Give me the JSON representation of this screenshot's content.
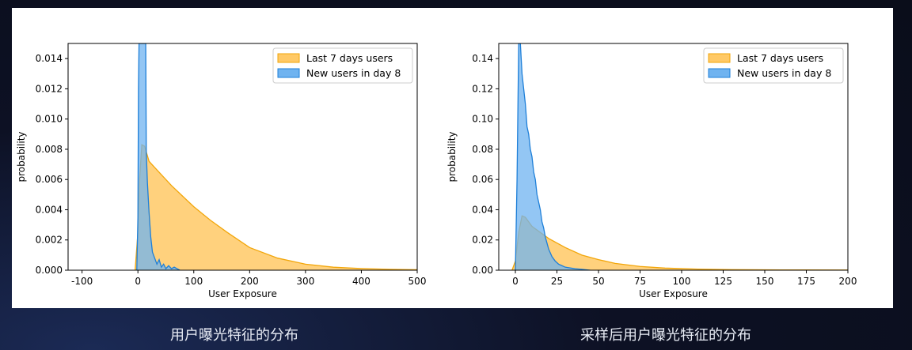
{
  "colors": {
    "last7_fill": "#ffc966",
    "last7_edge": "#f2a60a",
    "new_fill": "#6fb3f0",
    "new_edge": "#1e7fd8",
    "overlap": "#8aa8a8",
    "page_bg": "#0a0d1a"
  },
  "captions": {
    "left": "用户曝光特征的分布",
    "right": "采样后用户曝光特征的分布"
  },
  "chart_data": [
    {
      "type": "area",
      "xlabel": "User Exposure",
      "ylabel": "probability",
      "xlim": [
        -125,
        500
      ],
      "ylim": [
        0,
        0.015
      ],
      "xticks": [
        -100,
        0,
        100,
        200,
        300,
        400,
        500
      ],
      "yticks": [
        0.0,
        0.002,
        0.004,
        0.006,
        0.008,
        0.01,
        0.012,
        0.014
      ],
      "ytick_decimals": 3,
      "legend_position": "top-right",
      "series": [
        {
          "name": "Last 7 days users",
          "x": [
            -5,
            0,
            3,
            7,
            12,
            16,
            20,
            30,
            40,
            60,
            80,
            100,
            130,
            160,
            200,
            250,
            300,
            350,
            400,
            450,
            500
          ],
          "y": [
            0,
            0.0025,
            0.006,
            0.0083,
            0.0082,
            0.0077,
            0.0072,
            0.0068,
            0.0064,
            0.0056,
            0.0049,
            0.0042,
            0.0033,
            0.0025,
            0.0015,
            0.0008,
            0.0004,
            0.0002,
            0.00011,
            6e-05,
            3e-05
          ]
        },
        {
          "name": "New users in day 8",
          "x": [
            -2,
            0,
            1,
            2,
            14,
            15,
            17,
            20,
            23,
            26,
            30,
            34,
            38,
            42,
            46,
            50,
            55,
            60,
            65,
            70,
            75
          ],
          "y": [
            0,
            0.0035,
            0.012,
            0.015,
            0.015,
            0.0078,
            0.0058,
            0.0038,
            0.0022,
            0.0012,
            0.0008,
            0.0004,
            0.0007,
            0.0002,
            0.0004,
            0.0001,
            0.0003,
            0.0001,
            0.0002,
            0.0001,
            0
          ]
        }
      ]
    },
    {
      "type": "area",
      "xlabel": "User Exposure",
      "ylabel": "probability",
      "xlim": [
        -10,
        200
      ],
      "ylim": [
        0,
        0.15
      ],
      "xticks": [
        0,
        25,
        50,
        75,
        100,
        125,
        150,
        175,
        200
      ],
      "yticks": [
        0.0,
        0.02,
        0.04,
        0.06,
        0.08,
        0.1,
        0.12,
        0.14
      ],
      "ytick_decimals": 2,
      "legend_position": "top-right",
      "series": [
        {
          "name": "Last 7 days users",
          "x": [
            -2,
            0,
            2,
            4,
            6,
            8,
            10,
            15,
            20,
            30,
            40,
            50,
            60,
            75,
            90,
            110,
            130,
            160,
            200
          ],
          "y": [
            0,
            0.006,
            0.025,
            0.036,
            0.035,
            0.032,
            0.029,
            0.025,
            0.021,
            0.015,
            0.01,
            0.007,
            0.0045,
            0.0025,
            0.0014,
            0.0007,
            0.0004,
            0.0002,
            0.0001
          ],
          "note_hidden": false
        },
        {
          "name": "New users in day 8",
          "x": [
            0,
            1,
            2,
            2.5,
            3,
            3.5,
            4,
            5,
            6,
            7,
            8,
            9,
            10,
            11,
            12,
            13,
            14,
            15,
            16,
            17,
            18,
            19,
            20,
            22,
            24,
            26,
            28,
            30,
            33,
            36,
            40,
            45
          ],
          "y": [
            0,
            0.06,
            0.15,
            0.15,
            0.15,
            0.14,
            0.13,
            0.12,
            0.11,
            0.095,
            0.09,
            0.08,
            0.075,
            0.065,
            0.06,
            0.05,
            0.045,
            0.04,
            0.032,
            0.028,
            0.022,
            0.018,
            0.014,
            0.009,
            0.006,
            0.004,
            0.003,
            0.002,
            0.0015,
            0.001,
            0.0006,
            0
          ]
        }
      ]
    }
  ]
}
